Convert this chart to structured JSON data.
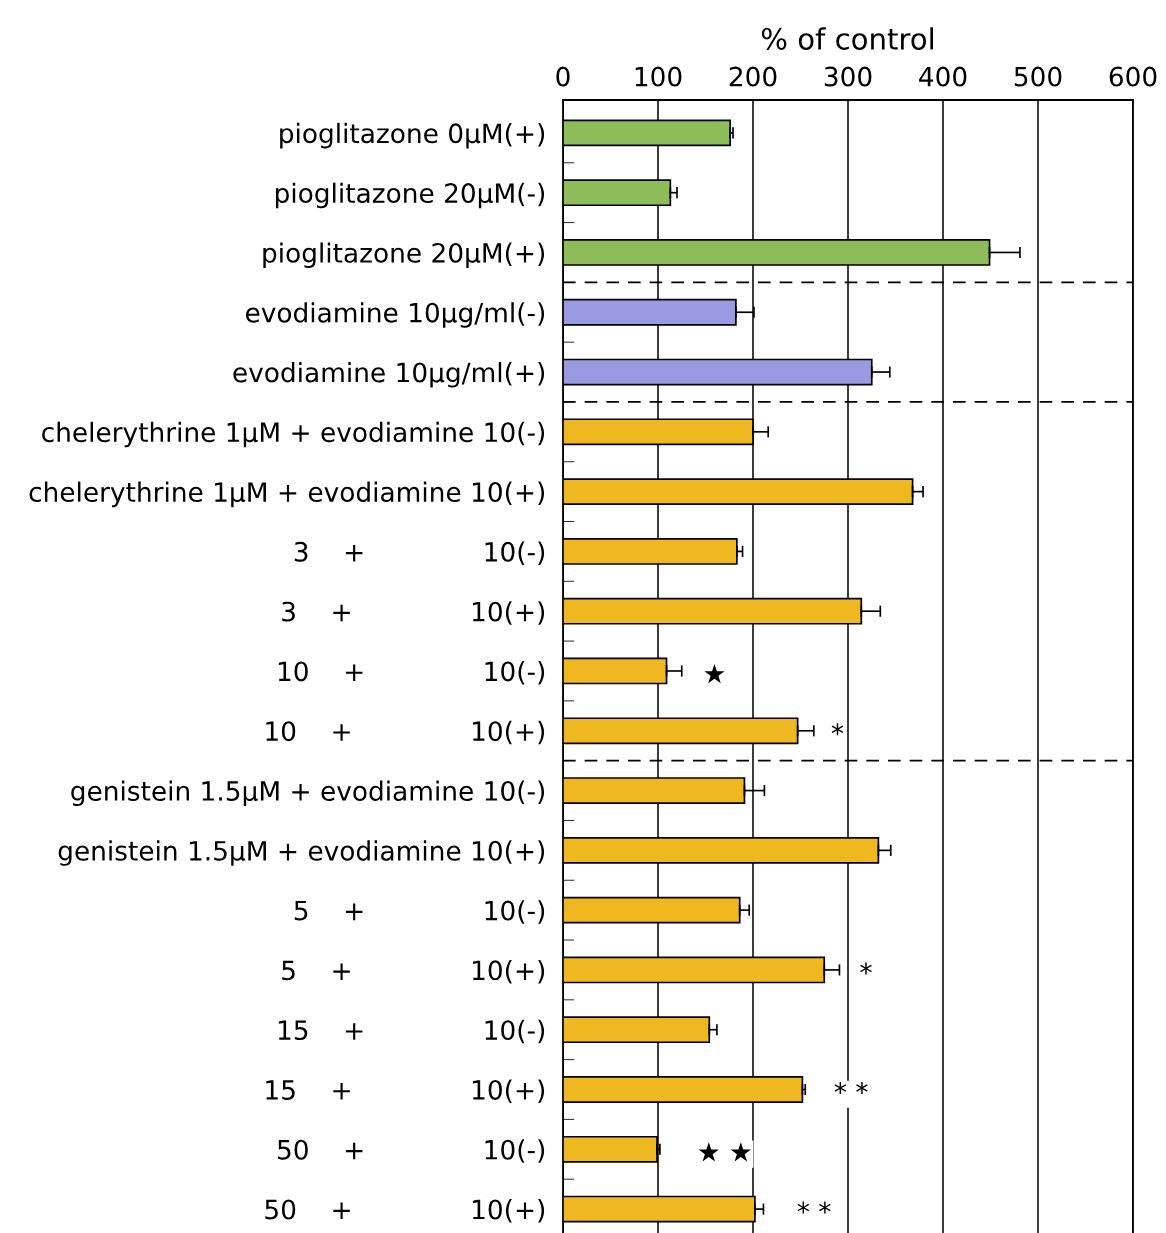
{
  "chart_data": {
    "type": "bar",
    "orientation": "horizontal",
    "xlabel": "% of control",
    "categories": [
      "pioglitazone 0μM(+)",
      "pioglitazone 20μM(-)",
      "pioglitazone 20μM(+)",
      "evodiamine 10μg/ml(-)",
      "evodiamine 10μg/ml(+)",
      "chelerythrine 1μM + evodiamine 10(-)",
      "chelerythrine 1μM + evodiamine 10(+)",
      "3    +              10(-)",
      "3    +              10(+)",
      "10    +              10(-)",
      "10    +              10(+)",
      "genistein 1.5μM + evodiamine 10(-)",
      "genistein 1.5μM + evodiamine 10(+)",
      "5    +              10(-)",
      "5    +              10(+)",
      "15    +              10(-)",
      "15    +              10(+)",
      "50    +              10(-)",
      "50    +              10(+)"
    ],
    "values": [
      176,
      113,
      449,
      182,
      325,
      200,
      368,
      183,
      314,
      109,
      247,
      191,
      332,
      186,
      275,
      154,
      252,
      99,
      202
    ],
    "errors": [
      3,
      7,
      32,
      19,
      19,
      16,
      11,
      6,
      20,
      16,
      17,
      21,
      13,
      10,
      16,
      8,
      3,
      3,
      9
    ],
    "colors": [
      "#8fbc5a",
      "#8fbc5a",
      "#8fbc5a",
      "#9a9ae2",
      "#9a9ae2",
      "#f0b820",
      "#f0b820",
      "#f0b820",
      "#f0b820",
      "#f0b820",
      "#f0b820",
      "#f0b820",
      "#f0b820",
      "#f0b820",
      "#f0b820",
      "#f0b820",
      "#f0b820",
      "#f0b820",
      "#f0b820"
    ],
    "xlim": [
      0,
      600
    ],
    "xticks": [
      0,
      100,
      200,
      300,
      400,
      500,
      600
    ],
    "grid": "x",
    "annotations": [
      "★",
      "*",
      "*",
      "* *",
      "★ ★",
      "* *"
    ]
  }
}
